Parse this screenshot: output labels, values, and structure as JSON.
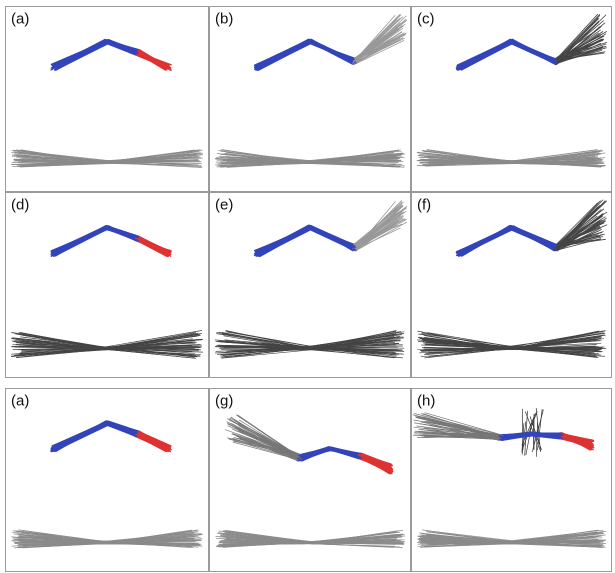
{
  "panels": [
    {
      "label": "(a)"
    },
    {
      "label": "(b)"
    },
    {
      "label": "(c)"
    },
    {
      "label": "(d)"
    },
    {
      "label": "(e)"
    },
    {
      "label": "(f)"
    },
    {
      "label": "(a)"
    },
    {
      "label": "(g)"
    },
    {
      "label": "(h)"
    }
  ]
}
